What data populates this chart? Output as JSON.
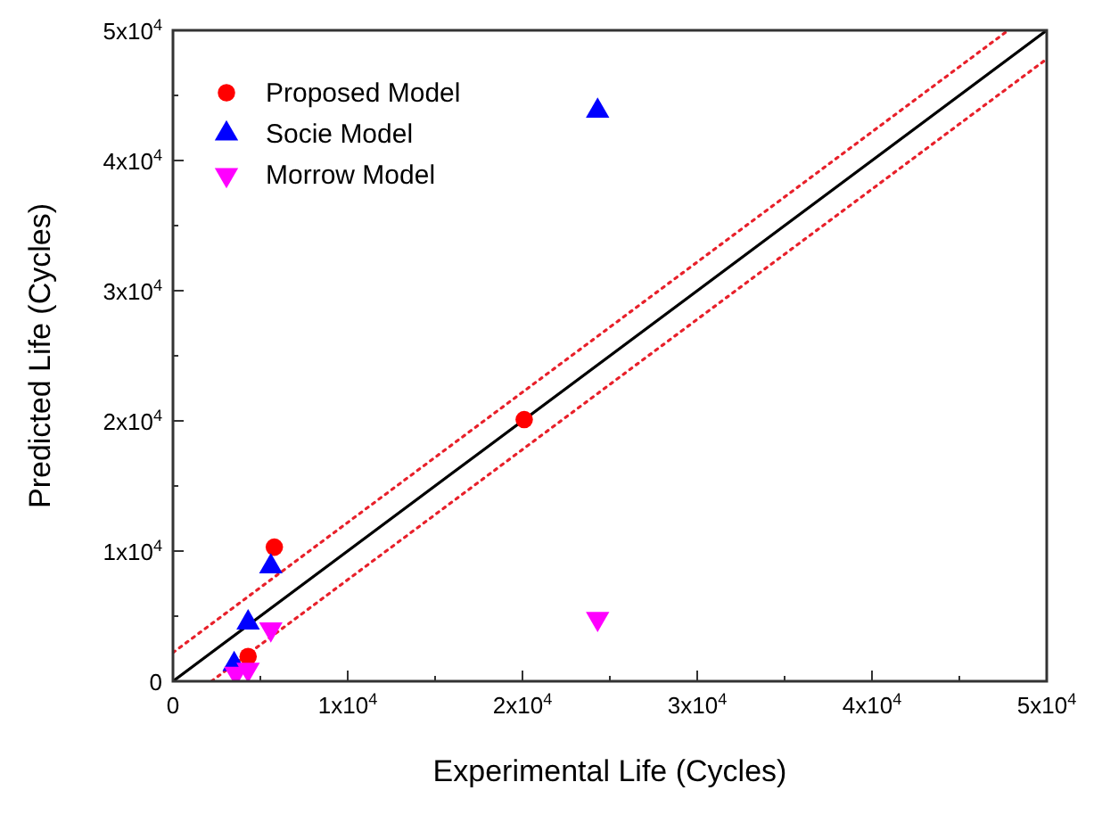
{
  "chart_data": {
    "type": "scatter",
    "xlabel": "Experimental Life (Cycles)",
    "ylabel": "Predicted Life (Cycles)",
    "xlim": [
      0,
      50000
    ],
    "ylim": [
      0,
      50000
    ],
    "xticks": [
      0,
      {
        "value": 5000,
        "label": null
      },
      {
        "value": 10000,
        "label": "1x10$^{4}$"
      },
      {
        "value": 15000,
        "label": null
      },
      {
        "value": 20000,
        "label": "2x10$^{4}$"
      },
      {
        "value": 25000,
        "label": null
      },
      {
        "value": 30000,
        "label": "3x10$^{4}$"
      },
      {
        "value": 35000,
        "label": null
      },
      {
        "value": 40000,
        "label": "4x10$^{4}$"
      },
      {
        "value": 45000,
        "label": null
      },
      {
        "value": 50000,
        "label": "5x10$^{4}$"
      }
    ],
    "yticks": [
      0,
      {
        "value": 5000,
        "label": null
      },
      {
        "value": 10000,
        "label": "1x10$^{4}$"
      },
      {
        "value": 15000,
        "label": null
      },
      {
        "value": 20000,
        "label": "2x10$^{4}$"
      },
      {
        "value": 25000,
        "label": null
      },
      {
        "value": 30000,
        "label": "3x10$^{4}$"
      },
      {
        "value": 35000,
        "label": null
      },
      {
        "value": 40000,
        "label": "4x10$^{4}$"
      },
      {
        "value": 45000,
        "label": null
      },
      {
        "value": 50000,
        "label": "5x10$^{4}$"
      }
    ],
    "grid": false,
    "legend": "top left",
    "series": [
      {
        "type": "line",
        "color": "#000000",
        "marker": "none",
        "line_style": "solid",
        "x": [
          0,
          50000
        ],
        "values": [
          0,
          50000
        ]
      },
      {
        "type": "line",
        "color": "#e8202a",
        "marker": "none",
        "line_style": "dotted",
        "x": [
          0,
          47800
        ],
        "values": [
          2200,
          50000
        ]
      },
      {
        "type": "line",
        "color": "#e8202a",
        "marker": "none",
        "line_style": "dotted",
        "x": [
          2200,
          50000
        ],
        "values": [
          0,
          47800
        ]
      },
      {
        "name": "Proposed Model",
        "color": "#ff0000",
        "marker": "circle",
        "x": [
          5800,
          20100,
          4300
        ],
        "values": [
          10300,
          20100,
          1900
        ]
      },
      {
        "name": "Socie Model",
        "color": "#0000ff",
        "marker": "triangle",
        "x": [
          5600,
          4300,
          3500,
          24300
        ],
        "values": [
          8800,
          4500,
          1300,
          43800
        ]
      },
      {
        "name": "Morrow Model",
        "color": "#ff00ff",
        "marker": "triangle_down",
        "x": [
          5600,
          3600,
          4300,
          24300
        ],
        "values": [
          4000,
          600,
          900,
          4800
        ]
      }
    ]
  }
}
